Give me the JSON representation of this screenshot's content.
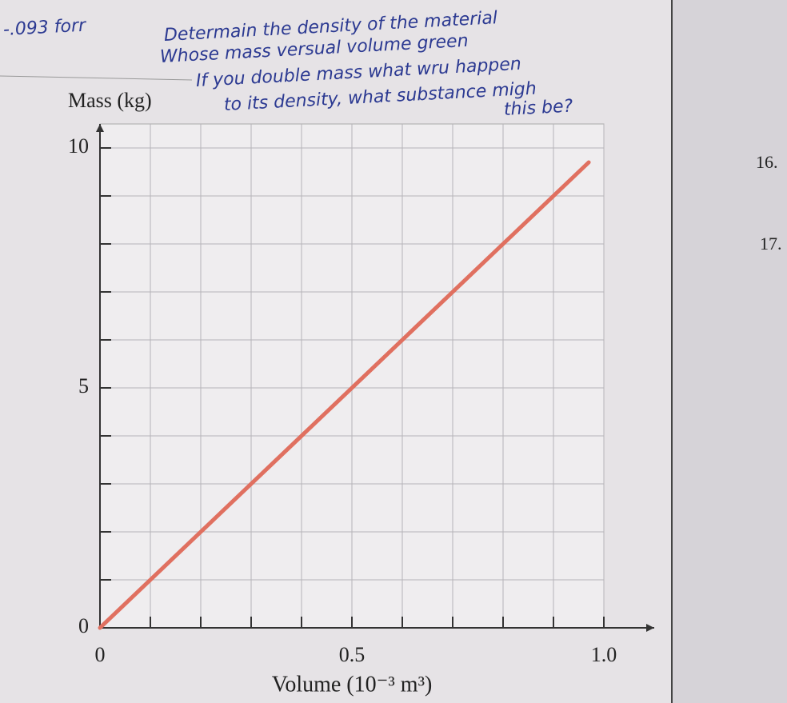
{
  "chart_data": {
    "type": "line",
    "ylabel": "Mass (kg)",
    "xlabel": "Volume (10⁻³ m³)",
    "x": [
      0,
      0.97
    ],
    "series": [
      {
        "color": "#e07060",
        "values": [
          0,
          9.7
        ]
      }
    ],
    "xlim": [
      0,
      1.1
    ],
    "ylim": [
      0,
      10.5
    ],
    "xticks": [
      0,
      0.5,
      {
        "value": 1,
        "label": "1.0"
      }
    ],
    "yticks": [
      0,
      5,
      10
    ],
    "x_minor_ticks": [
      0.1,
      0.2,
      0.3,
      0.4,
      0.6,
      0.7,
      0.8,
      0.9
    ],
    "y_minor_ticks": [
      1,
      2,
      3,
      4,
      6,
      7,
      8,
      9
    ],
    "grid": true,
    "annotations": [
      "-.093 forr",
      "Determain the density of the material",
      "Whose mass versual volume green",
      "If you double mass what wru happen",
      "to its density, what substance migh",
      "this be?",
      "16.",
      "17."
    ]
  }
}
